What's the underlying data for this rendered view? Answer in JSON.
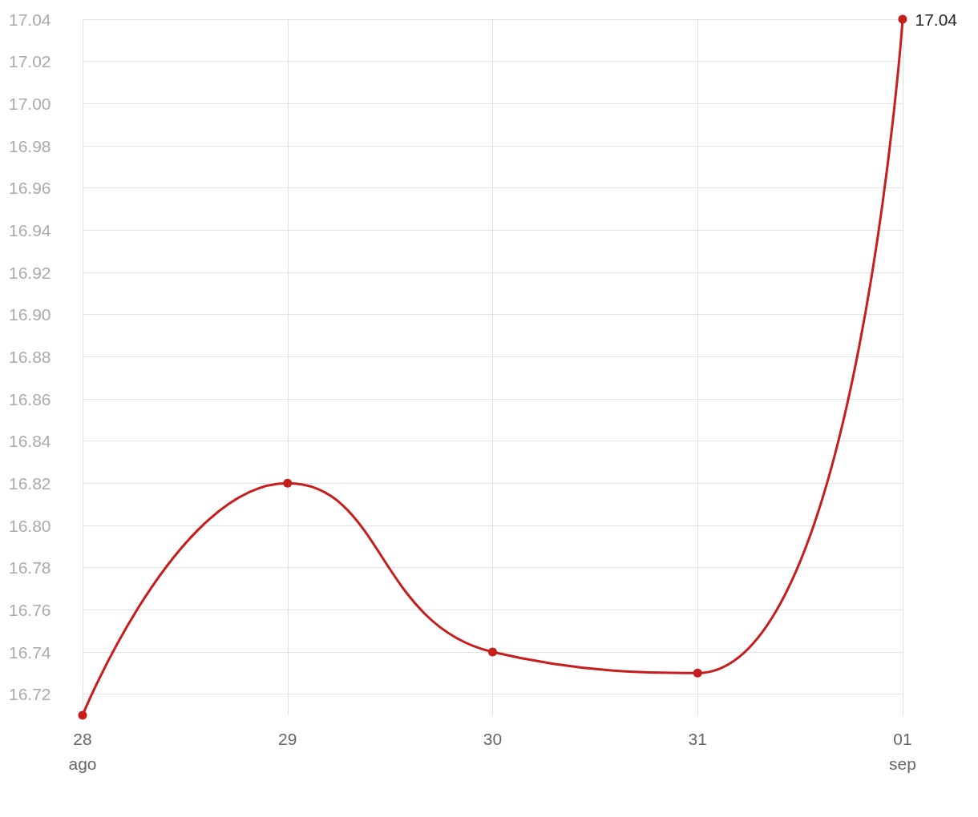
{
  "chart_data": {
    "type": "line",
    "categories": [
      "28\nago",
      "29",
      "30",
      "31",
      "01\nsep"
    ],
    "series": [
      {
        "color": "#c71e1d",
        "values": [
          16.71,
          16.82,
          16.74,
          16.73,
          17.04
        ],
        "value_labels": [
          null,
          null,
          null,
          null,
          "17.04"
        ]
      }
    ],
    "ylim": [
      16.71,
      17.04
    ],
    "yticks": [
      16.72,
      16.74,
      16.76,
      16.78,
      {
        "value": 16.8,
        "label": "16.80"
      },
      16.82,
      16.84,
      16.86,
      16.88,
      {
        "value": 16.9,
        "label": "16.90"
      },
      16.92,
      16.94,
      16.96,
      16.98,
      {
        "value": 17,
        "label": "17.00"
      },
      17.02,
      17.04
    ],
    "grid": true,
    "marker": "circle",
    "line_style": "solid"
  }
}
